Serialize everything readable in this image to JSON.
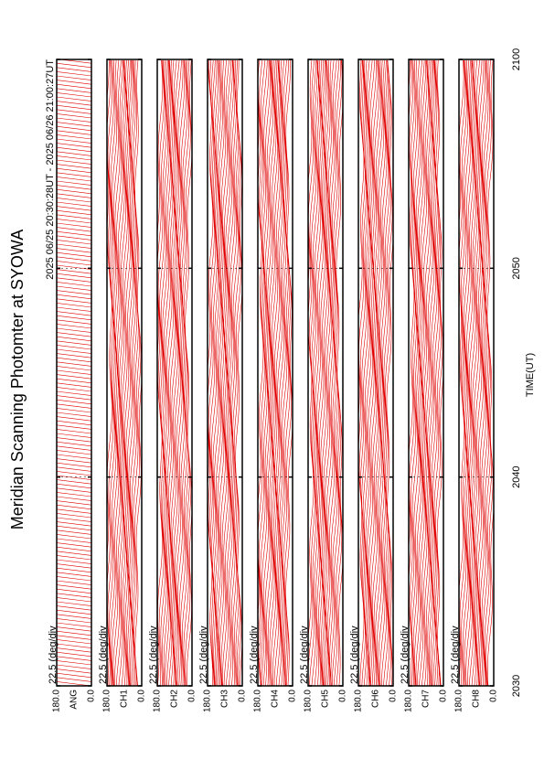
{
  "chart_data": {
    "type": "line",
    "title": "Meridian Scanning Photomter at SYOWA",
    "subtitle": "2025 06/25 20:30:28UT - 2025 06/26 21:00:27UT",
    "xlabel": "TIME(UT)",
    "xlim": [
      1230,
      1260
    ],
    "xticks": [
      {
        "value": 1230,
        "label": "2030"
      },
      {
        "value": 1240,
        "label": "2040"
      },
      {
        "value": 1250,
        "label": "2050"
      },
      {
        "value": 1260,
        "label": "2100"
      }
    ],
    "color": "#e00000",
    "panels": [
      {
        "name": "ANG",
        "scale": "22.5 (deg/div",
        "ylim": [
          0,
          180
        ],
        "yticks": [
          {
            "value": 0,
            "label": "0.0"
          },
          {
            "value": 180,
            "label": "180.0"
          }
        ]
      },
      {
        "name": "CH1",
        "scale": "22.5 (deg/div",
        "ylim": [
          0,
          180
        ],
        "yticks": [
          {
            "value": 0,
            "label": "0.0"
          },
          {
            "value": 180,
            "label": "180.0"
          }
        ]
      },
      {
        "name": "CH2",
        "scale": "22.5 (deg/div",
        "ylim": [
          0,
          180
        ],
        "yticks": [
          {
            "value": 0,
            "label": "0.0"
          },
          {
            "value": 180,
            "label": "180.0"
          }
        ]
      },
      {
        "name": "CH3",
        "scale": "22.5 (deg/div",
        "ylim": [
          0,
          180
        ],
        "yticks": [
          {
            "value": 0,
            "label": "0.0"
          },
          {
            "value": 180,
            "label": "180.0"
          }
        ]
      },
      {
        "name": "CH4",
        "scale": "22.5 (deg/div",
        "ylim": [
          0,
          180
        ],
        "yticks": [
          {
            "value": 0,
            "label": "0.0"
          },
          {
            "value": 180,
            "label": "180.0"
          }
        ]
      },
      {
        "name": "CH5",
        "scale": "22.5 (deg/div",
        "ylim": [
          0,
          180
        ],
        "yticks": [
          {
            "value": 0,
            "label": "0.0"
          },
          {
            "value": 180,
            "label": "180.0"
          }
        ]
      },
      {
        "name": "CH6",
        "scale": "22.5 (deg/div",
        "ylim": [
          0,
          180
        ],
        "yticks": [
          {
            "value": 0,
            "label": "0.0"
          },
          {
            "value": 180,
            "label": "180.0"
          }
        ]
      },
      {
        "name": "CH7",
        "scale": "22.5 (deg/div",
        "ylim": [
          0,
          180
        ],
        "yticks": [
          {
            "value": 0,
            "label": "0.0"
          },
          {
            "value": 180,
            "label": "180.0"
          }
        ]
      },
      {
        "name": "CH8",
        "scale": "22.5 (deg/div",
        "ylim": [
          0,
          180
        ],
        "yticks": [
          {
            "value": 0,
            "label": "0.0"
          },
          {
            "value": 180,
            "label": "180.0"
          }
        ]
      }
    ]
  }
}
